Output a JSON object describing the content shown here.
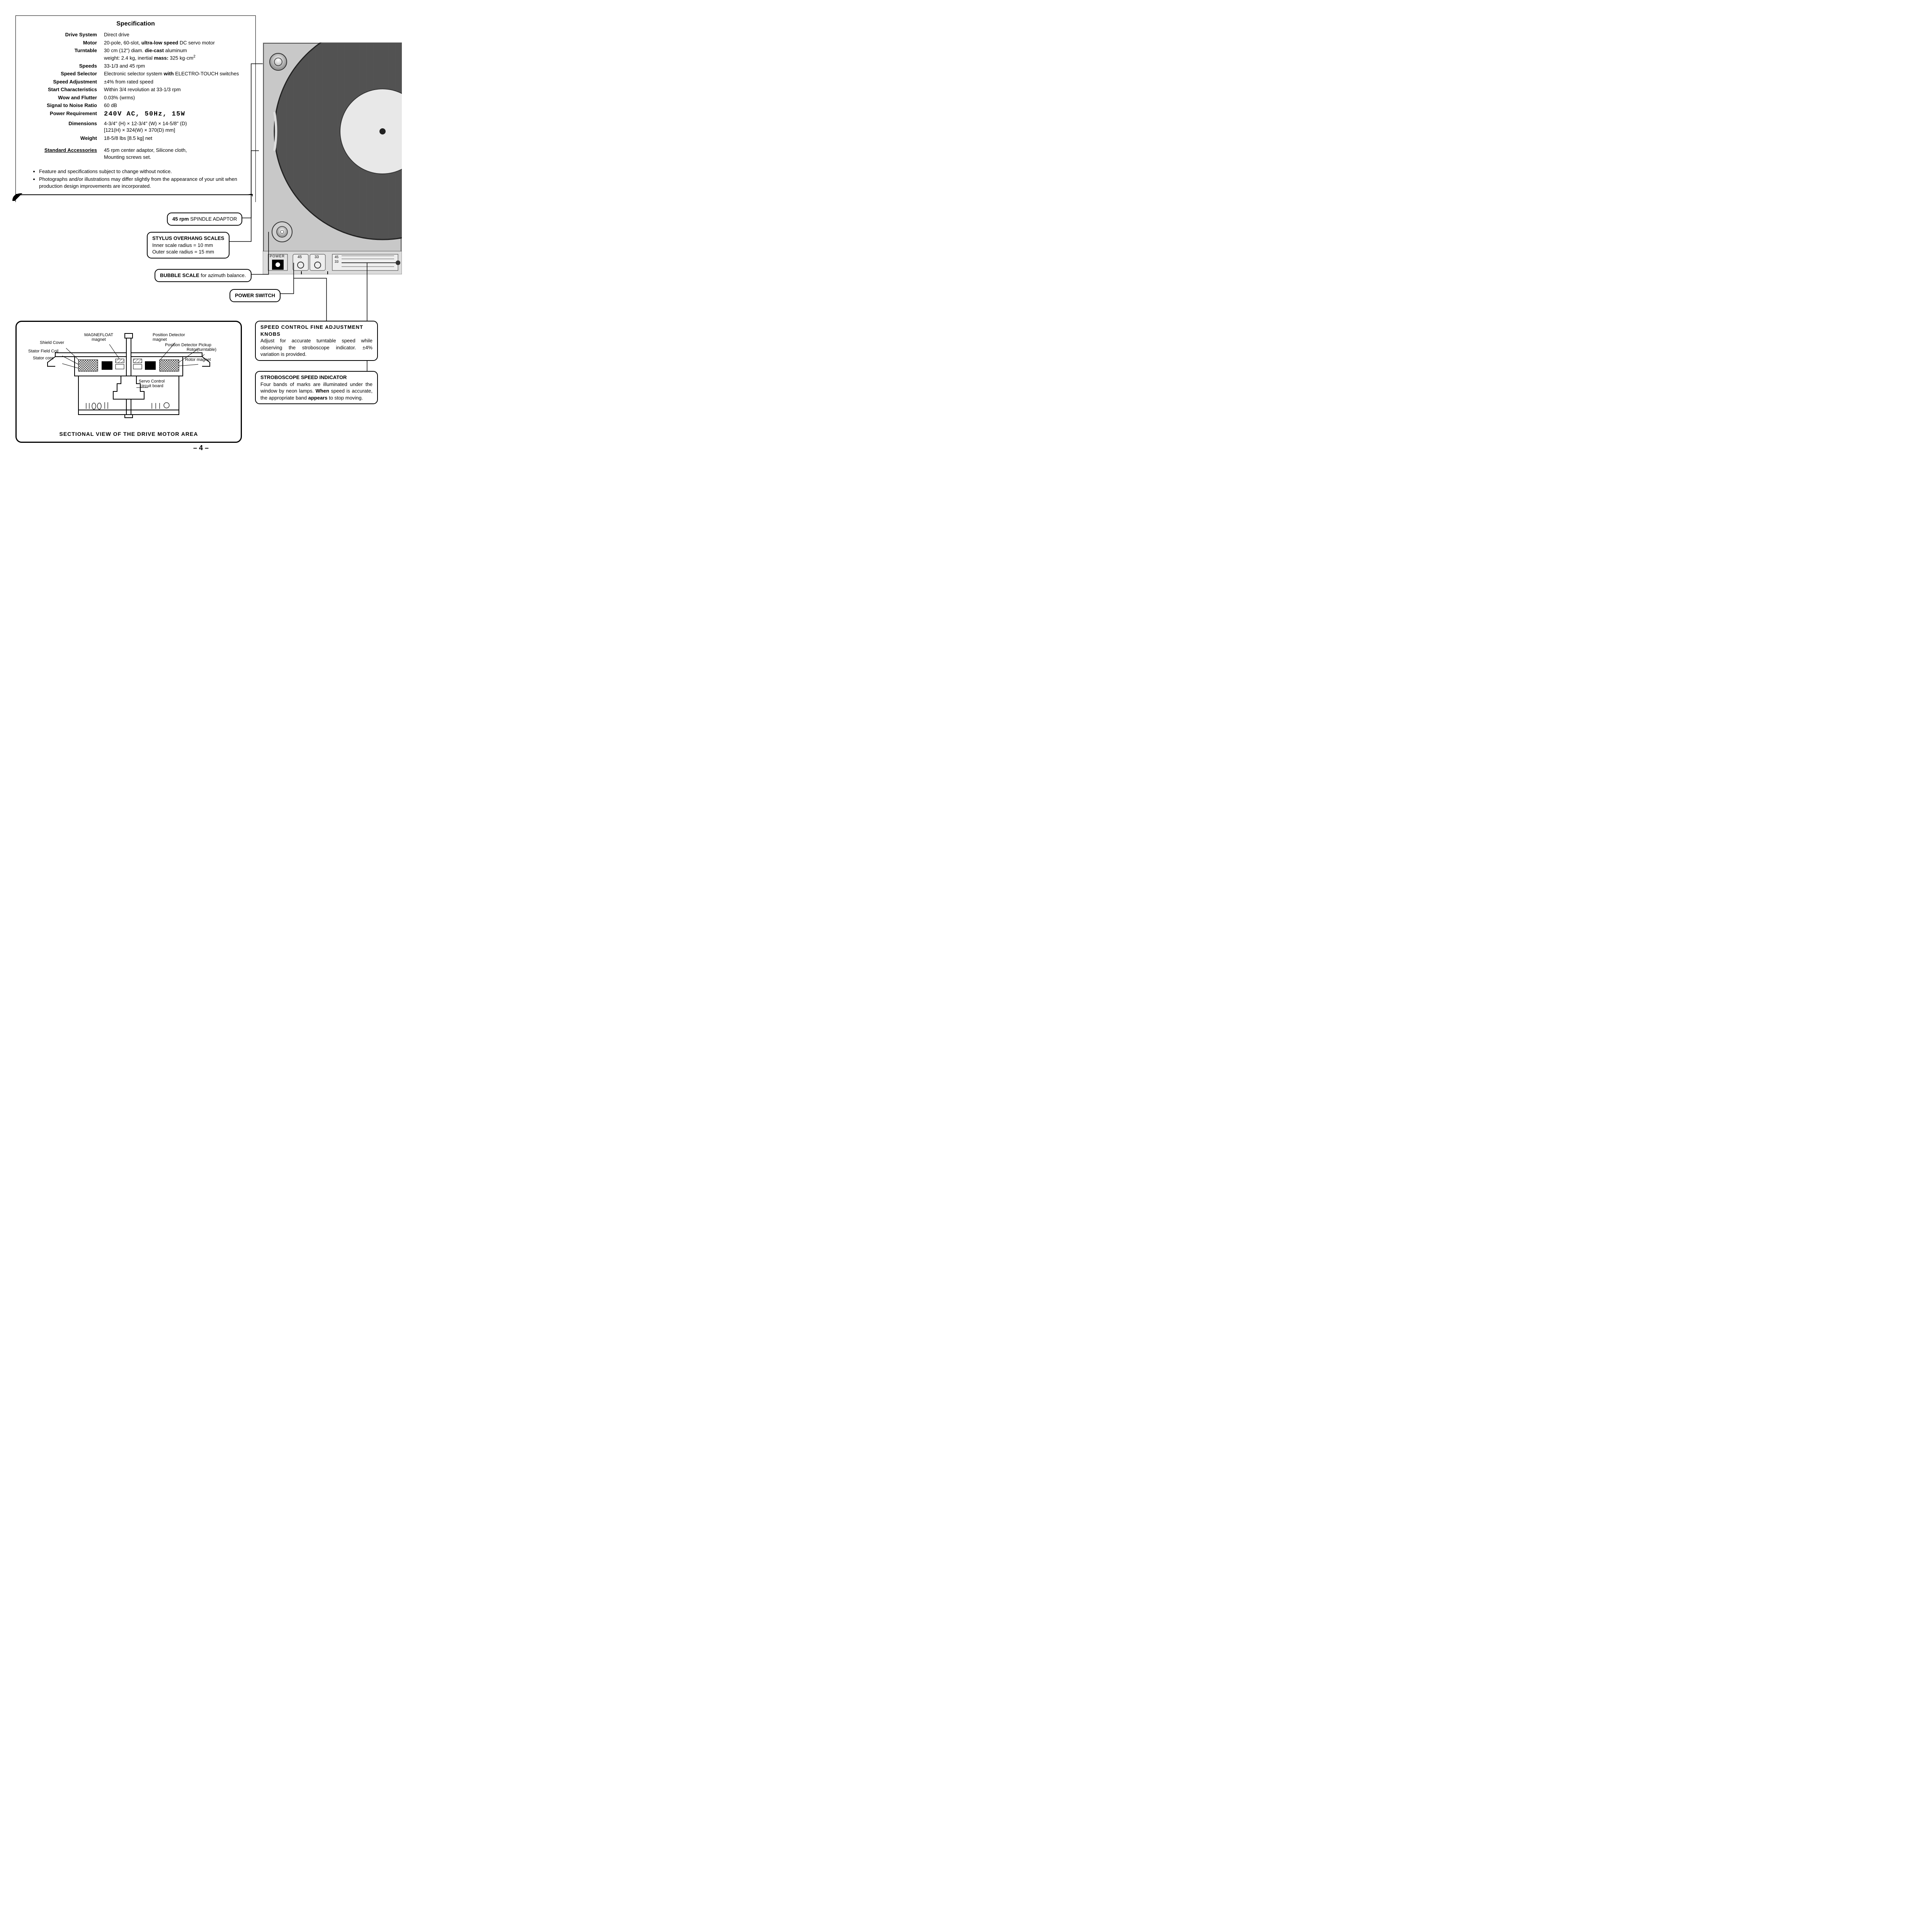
{
  "spec": {
    "title": "Specification",
    "rows": [
      {
        "label": "Drive System",
        "value": "Direct drive"
      },
      {
        "label": "Motor",
        "value": "20-pole, 60-slot, <b>ultra-low speed</b> DC servo motor"
      },
      {
        "label": "Turntable",
        "value": "30 cm (12\") diam. <b>die-cast</b> aluminum<br>weight: 2.4 kg, inertial <b>mass:</b> 325 kg·cm<span class='sup'>2</span>"
      },
      {
        "label": "Speeds",
        "value": "33-1/3 and 45 rpm"
      },
      {
        "label": "Speed Selector",
        "value": "Electronic selector system <b>with</b> ELECTRO-TOUCH switches"
      },
      {
        "label": "Speed Adjustment",
        "value": "±4% from rated speed"
      },
      {
        "label": "Start Characteristics",
        "value": "Within 3/4 revolution at 33-1/3 rpm"
      },
      {
        "label": "Wow and Flutter",
        "value": "0.03% (wrms)"
      },
      {
        "label": "Signal to Noise Ratio",
        "value": "60 dB"
      },
      {
        "label": "Power Requirement",
        "value": "<span class='power-handwritten'>240V AC, 50Hz, 15W</span>"
      },
      {
        "label": "Dimensions",
        "value": "4-3/4\" (H) × 12-3/4\" (W) × 14-5/8\" (D)<br>[121(H) × 324(W) × 370(D) mm]"
      },
      {
        "label": "Weight",
        "value": "18-5/8 lbs [8.5 kg] net"
      }
    ],
    "accessories_label": "Standard Accessories",
    "accessories_value": "45 rpm center adaptor, Silicone cloth,<br>Mounting screws set.",
    "footnotes": [
      "Feature and specifications subject to change without notice.",
      "Photographs and/or illustrations may differ slightly from the appearance of your unit when production design improvements are incorporated."
    ]
  },
  "callouts": {
    "spindle": "<b>45 rpm</b> SPINDLE ADAPTOR",
    "overhang_title": "STYLUS OVERHANG SCALES",
    "overhang_l1": "Inner scale radius = 10 mm",
    "overhang_l2": "Outer scale radius = 15 mm",
    "bubble": "<b>BUBBLE SCALE</b> for azimuth balance.",
    "power": "POWER SWITCH",
    "speed_knobs_title": "SPEED CONTROL FINE ADJUSTMENT KNOBS",
    "speed_knobs_body": "Adjust for accurate turntable speed while observing the stroboscope indicator. ±4% variation is provided.",
    "strobo_title": "STROBOSCOPE SPEED INDICATOR",
    "strobo_body": "Four bands of marks are illuminated under the window by neon lamps. <b>When</b> speed is accurate, the appropriate band <b>appears</b> to stop moving."
  },
  "sectional": {
    "title": "SECTIONAL VIEW OF THE DRIVE MOTOR AREA",
    "labels": {
      "shield_cover": "Shield Cover",
      "magnefloat": "MAGNEFLOAT\nmagnet",
      "stator_field": "Stator Field Coil",
      "stator_core": "Stator core",
      "pos_detector_magnet": "Position Detector\nmagnet",
      "pos_detector_pickup": "Position Detector Pickup",
      "rotor_turntable": "Rotor(turntable)",
      "rotor_magnet": "Rotor magnet",
      "servo": "Servo Control\ncircuit board"
    }
  },
  "panel": {
    "power_label": "POWER",
    "btn45": "45",
    "btn33": "33",
    "strobo45": "45",
    "strobo33": "33"
  },
  "page_number": "– 4 –",
  "colors": {
    "black": "#000000",
    "white": "#ffffff",
    "platter_dark": "#3a3a3a",
    "platter_light": "#888888",
    "chassis_grey": "#b8b8b8",
    "hatch": "#555555"
  }
}
